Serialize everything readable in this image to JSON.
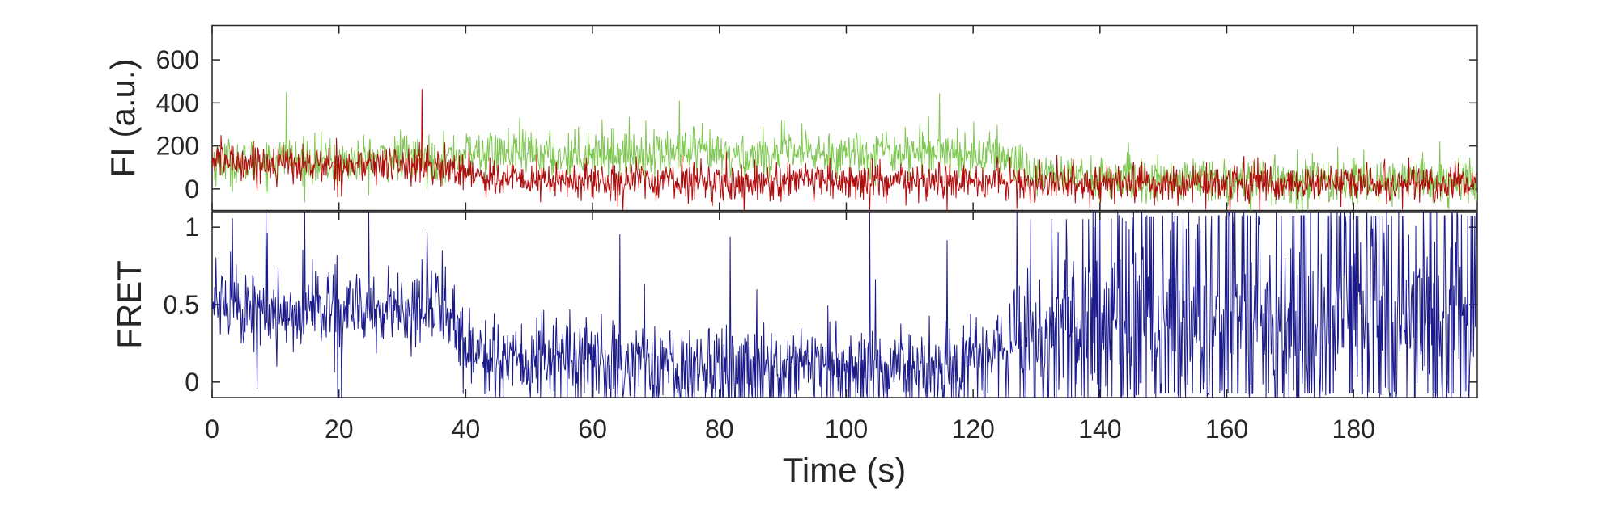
{
  "chart_data": [
    {
      "type": "line",
      "panel": "fluorescence",
      "ylabel": "FI (a.u.)",
      "xlim": [
        0,
        199.5
      ],
      "ylim": [
        -100,
        760
      ],
      "yticks": [
        0,
        200,
        400,
        600
      ],
      "xticks": [
        0,
        20,
        40,
        60,
        80,
        100,
        120,
        140,
        160,
        180
      ],
      "grid": false,
      "sampling_interval_s": 0.1,
      "series": [
        {
          "color": "#7ec850",
          "x": [
            0,
            5,
            10,
            15,
            20,
            25,
            30,
            35,
            40,
            45,
            50,
            55,
            60,
            65,
            70,
            75,
            80,
            85,
            90,
            95,
            100,
            105,
            110,
            115,
            120,
            125,
            130,
            135,
            140,
            145,
            150,
            155,
            160,
            165,
            170,
            175,
            180,
            185,
            190,
            195,
            199.5
          ],
          "values": [
            130,
            120,
            140,
            130,
            120,
            140,
            150,
            135,
            160,
            170,
            165,
            150,
            175,
            170,
            165,
            170,
            160,
            150,
            170,
            165,
            165,
            175,
            175,
            175,
            160,
            150,
            80,
            60,
            50,
            40,
            40,
            40,
            35,
            40,
            35,
            35,
            35,
            40,
            40,
            35,
            35
          ],
          "noise_sd": 55
        },
        {
          "color": "#b20a0a",
          "x": [
            0,
            5,
            10,
            15,
            20,
            25,
            30,
            35,
            40,
            45,
            50,
            55,
            60,
            65,
            70,
            75,
            80,
            85,
            90,
            95,
            100,
            105,
            110,
            115,
            120,
            125,
            130,
            135,
            140,
            145,
            150,
            155,
            160,
            165,
            170,
            175,
            180,
            185,
            190,
            195,
            199.5
          ],
          "values": [
            140,
            125,
            120,
            115,
            110,
            110,
            115,
            100,
            85,
            45,
            40,
            35,
            35,
            40,
            40,
            40,
            30,
            30,
            35,
            30,
            30,
            30,
            30,
            30,
            30,
            30,
            30,
            25,
            25,
            25,
            25,
            25,
            25,
            25,
            25,
            25,
            25,
            25,
            25,
            25,
            25
          ],
          "noise_sd": 45
        }
      ],
      "peaks": [
        {
          "series": 1,
          "x": 33.1,
          "y": 465
        },
        {
          "series": 0,
          "x": 11.7,
          "y": 450
        },
        {
          "series": 0,
          "x": 114.7,
          "y": 445
        },
        {
          "series": 0,
          "x": 73.7,
          "y": 410
        }
      ]
    },
    {
      "type": "line",
      "panel": "fret",
      "xlabel": "Time (s)",
      "ylabel": "FRET",
      "xlim": [
        0,
        199.5
      ],
      "ylim": [
        -0.1,
        1.1
      ],
      "yticks": [
        0,
        0.5,
        1
      ],
      "ytick_labels": [
        "0",
        "0.5",
        "1"
      ],
      "xticks": [
        0,
        20,
        40,
        60,
        80,
        100,
        120,
        140,
        160,
        180
      ],
      "grid": false,
      "sampling_interval_s": 0.1,
      "series": [
        {
          "color": "#1a1a8c",
          "x": [
            0,
            10,
            20,
            30,
            38,
            40,
            50,
            60,
            70,
            80,
            90,
            100,
            110,
            118,
            120,
            130,
            140,
            150,
            160,
            170,
            180,
            190,
            199.5
          ],
          "values": [
            0.45,
            0.45,
            0.5,
            0.55,
            0.55,
            0.2,
            0.25,
            0.3,
            0.15,
            0.2,
            0.2,
            0.2,
            0.15,
            0.15,
            0.4,
            0.45,
            0.45,
            0.5,
            0.5,
            0.5,
            0.5,
            0.5,
            0.5
          ],
          "clip_range": [
            -0.1,
            1.1
          ]
        }
      ]
    }
  ]
}
